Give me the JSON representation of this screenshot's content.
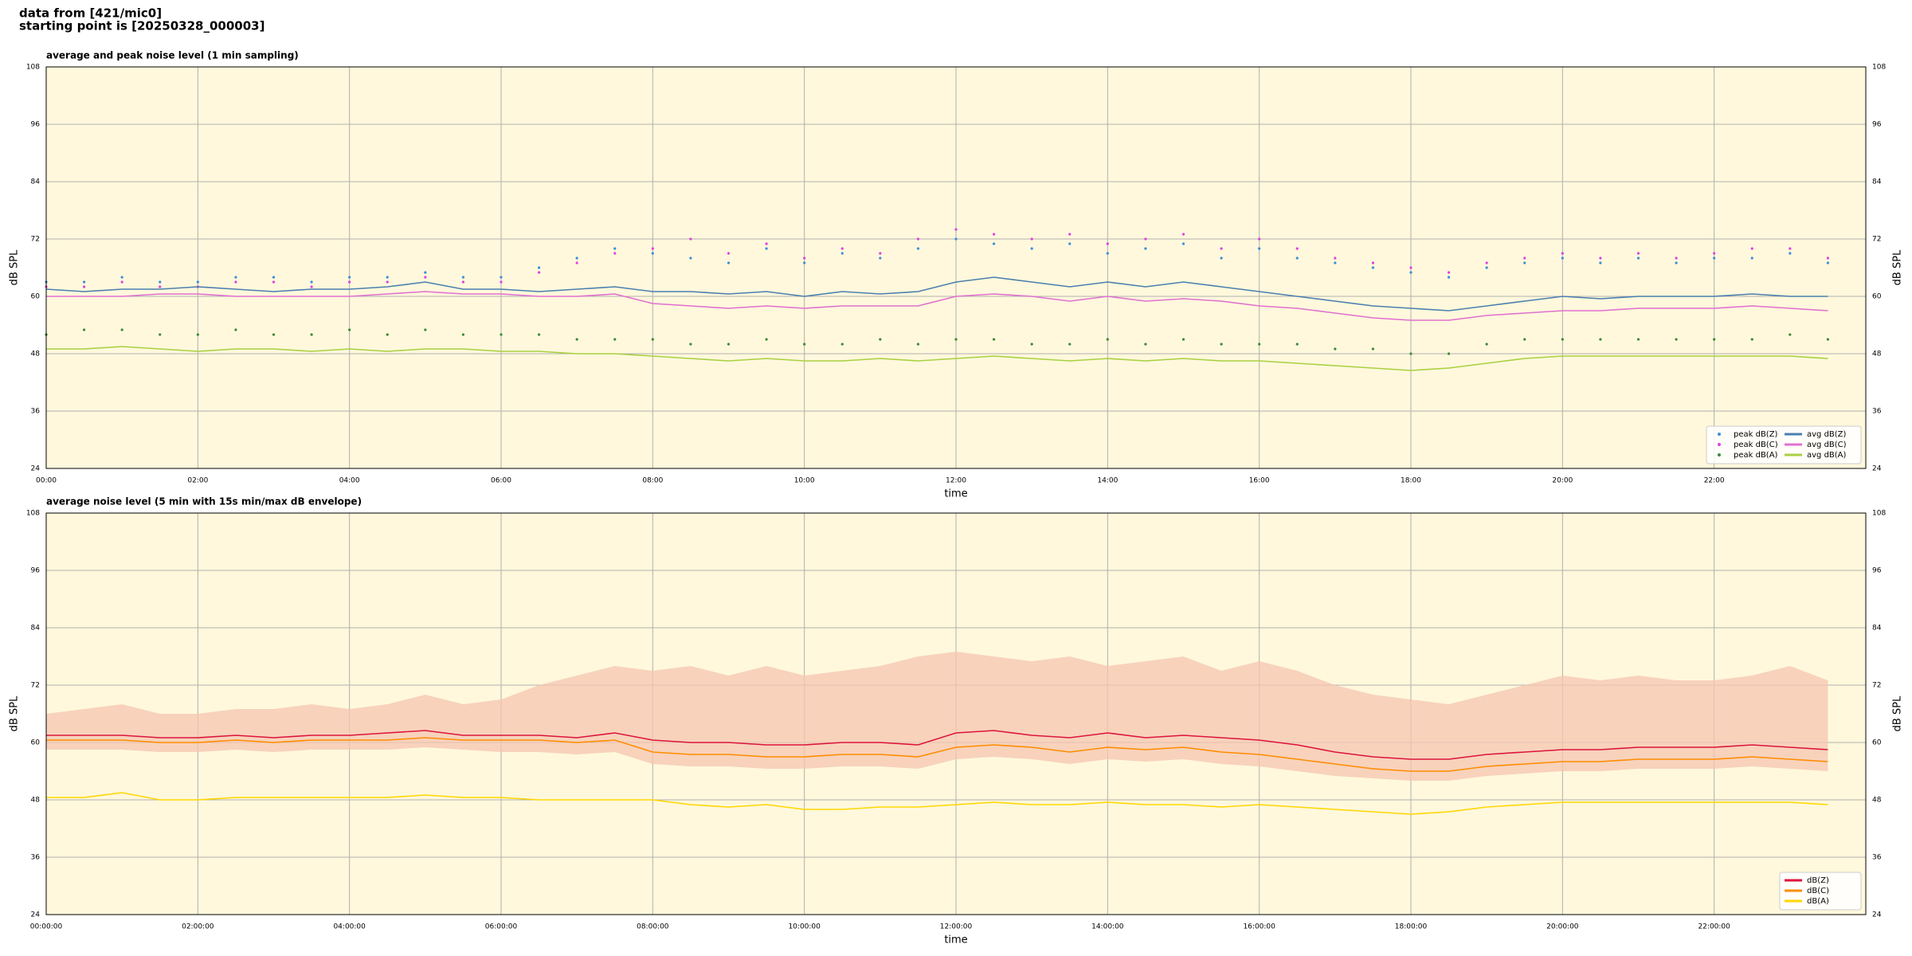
{
  "header": {
    "line1": "data from [421/mic0]",
    "line2": "starting point is [20250328_000003]"
  },
  "chart_data": [
    {
      "type": "line",
      "title": "average and peak noise level (1 min sampling)",
      "xlabel": "time",
      "ylabel": "dB SPL",
      "xlim": [
        0,
        24
      ],
      "ylim": [
        24,
        108
      ],
      "grid": true,
      "legend": "lower right",
      "legend_columns": 2,
      "background": "#fff8dc",
      "xticks": [
        {
          "value": 0,
          "label": "00:00"
        },
        {
          "value": 2,
          "label": "02:00"
        },
        {
          "value": 4,
          "label": "04:00"
        },
        {
          "value": 6,
          "label": "06:00"
        },
        {
          "value": 8,
          "label": "08:00"
        },
        {
          "value": 10,
          "label": "10:00"
        },
        {
          "value": 12,
          "label": "12:00"
        },
        {
          "value": 14,
          "label": "14:00"
        },
        {
          "value": 16,
          "label": "16:00"
        },
        {
          "value": 18,
          "label": "18:00"
        },
        {
          "value": 20,
          "label": "20:00"
        },
        {
          "value": 22,
          "label": "22:00"
        }
      ],
      "yticks": [
        24,
        36,
        48,
        60,
        72,
        84,
        96,
        108
      ],
      "x": [
        0,
        0.5,
        1,
        1.5,
        2,
        2.5,
        3,
        3.5,
        4,
        4.5,
        5,
        5.5,
        6,
        6.5,
        7,
        7.5,
        8,
        8.5,
        9,
        9.5,
        10,
        10.5,
        11,
        11.5,
        12,
        12.5,
        13,
        13.5,
        14,
        14.5,
        15,
        15.5,
        16,
        16.5,
        17,
        17.5,
        18,
        18.5,
        19,
        19.5,
        20,
        20.5,
        21,
        21.5,
        22,
        22.5,
        23,
        23.5
      ],
      "series": [
        {
          "name": "peak dB(Z)",
          "color": "#3a8fd8",
          "style": "dots",
          "values": [
            63,
            63,
            64,
            63,
            63,
            64,
            64,
            63,
            64,
            64,
            65,
            64,
            64,
            66,
            68,
            70,
            69,
            68,
            67,
            70,
            67,
            69,
            68,
            70,
            72,
            71,
            70,
            71,
            69,
            70,
            71,
            68,
            70,
            68,
            67,
            66,
            65,
            64,
            66,
            67,
            68,
            67,
            68,
            67,
            68,
            68,
            69,
            67
          ]
        },
        {
          "name": "peak dB(C)",
          "color": "#e040e0",
          "style": "dots",
          "values": [
            62,
            62,
            63,
            62,
            62,
            63,
            63,
            62,
            63,
            63,
            64,
            63,
            63,
            65,
            67,
            69,
            70,
            72,
            69,
            71,
            68,
            70,
            69,
            72,
            74,
            73,
            72,
            73,
            71,
            72,
            73,
            70,
            72,
            70,
            68,
            67,
            66,
            65,
            67,
            68,
            69,
            68,
            69,
            68,
            69,
            70,
            70,
            68
          ]
        },
        {
          "name": "peak dB(A)",
          "color": "#3a8a3a",
          "style": "dots",
          "values": [
            52,
            53,
            53,
            52,
            52,
            53,
            52,
            52,
            53,
            52,
            53,
            52,
            52,
            52,
            51,
            51,
            51,
            50,
            50,
            51,
            50,
            50,
            51,
            50,
            51,
            51,
            50,
            50,
            51,
            50,
            51,
            50,
            50,
            50,
            49,
            49,
            48,
            48,
            50,
            51,
            51,
            51,
            51,
            51,
            51,
            51,
            52,
            51
          ]
        },
        {
          "name": "avg dB(Z)",
          "color": "#4a7fb0",
          "style": "line",
          "values": [
            61.5,
            61,
            61.5,
            61.5,
            62,
            61.5,
            61,
            61.5,
            61.5,
            62,
            63,
            61.5,
            61.5,
            61,
            61.5,
            62,
            61,
            61,
            60.5,
            61,
            60,
            61,
            60.5,
            61,
            63,
            64,
            63,
            62,
            63,
            62,
            63,
            62,
            61,
            60,
            59,
            58,
            57.5,
            57,
            58,
            59,
            60,
            59.5,
            60,
            60,
            60,
            60.5,
            60,
            60
          ]
        },
        {
          "name": "avg dB(C)",
          "color": "#e070d0",
          "style": "line",
          "values": [
            60,
            60,
            60,
            60.5,
            60.5,
            60,
            60,
            60,
            60,
            60.5,
            61,
            60.5,
            60.5,
            60,
            60,
            60.5,
            58.5,
            58,
            57.5,
            58,
            57.5,
            58,
            58,
            58,
            60,
            60.5,
            60,
            59,
            60,
            59,
            59.5,
            59,
            58,
            57.5,
            56.5,
            55.5,
            55,
            55,
            56,
            56.5,
            57,
            57,
            57.5,
            57.5,
            57.5,
            58,
            57.5,
            57
          ]
        },
        {
          "name": "avg dB(A)",
          "color": "#a8d040",
          "style": "line",
          "values": [
            49,
            49,
            49.5,
            49,
            48.5,
            49,
            49,
            48.5,
            49,
            48.5,
            49,
            49,
            48.5,
            48.5,
            48,
            48,
            47.5,
            47,
            46.5,
            47,
            46.5,
            46.5,
            47,
            46.5,
            47,
            47.5,
            47,
            46.5,
            47,
            46.5,
            47,
            46.5,
            46.5,
            46,
            45.5,
            45,
            44.5,
            45,
            46,
            47,
            47.5,
            47.5,
            47.5,
            47.5,
            47.5,
            47.5,
            47.5,
            47
          ]
        }
      ]
    },
    {
      "type": "line",
      "title": "average noise level (5 min with 15s min/max dB envelope)",
      "xlabel": "time",
      "ylabel": "dB SPL",
      "xlim": [
        0,
        24
      ],
      "ylim": [
        24,
        108
      ],
      "grid": true,
      "legend": "lower right",
      "legend_columns": 1,
      "background": "#fff8dc",
      "xticks": [
        {
          "value": 0,
          "label": "00:00:00"
        },
        {
          "value": 2,
          "label": "02:00:00"
        },
        {
          "value": 4,
          "label": "04:00:00"
        },
        {
          "value": 6,
          "label": "06:00:00"
        },
        {
          "value": 8,
          "label": "08:00:00"
        },
        {
          "value": 10,
          "label": "10:00:00"
        },
        {
          "value": 12,
          "label": "12:00:00"
        },
        {
          "value": 14,
          "label": "14:00:00"
        },
        {
          "value": 16,
          "label": "16:00:00"
        },
        {
          "value": 18,
          "label": "18:00:00"
        },
        {
          "value": 20,
          "label": "20:00:00"
        },
        {
          "value": 22,
          "label": "22:00:00"
        }
      ],
      "yticks": [
        24,
        36,
        48,
        60,
        72,
        84,
        96,
        108
      ],
      "x": [
        0,
        0.5,
        1,
        1.5,
        2,
        2.5,
        3,
        3.5,
        4,
        4.5,
        5,
        5.5,
        6,
        6.5,
        7,
        7.5,
        8,
        8.5,
        9,
        9.5,
        10,
        10.5,
        11,
        11.5,
        12,
        12.5,
        13,
        13.5,
        14,
        14.5,
        15,
        15.5,
        16,
        16.5,
        17,
        17.5,
        18,
        18.5,
        19,
        19.5,
        20,
        20.5,
        21,
        21.5,
        22,
        22.5,
        23,
        23.5
      ],
      "envelope": {
        "color": "#f5c6b0",
        "upper": [
          66,
          67,
          68,
          66,
          66,
          67,
          67,
          68,
          67,
          68,
          70,
          68,
          69,
          72,
          74,
          76,
          75,
          76,
          74,
          76,
          74,
          75,
          76,
          78,
          79,
          78,
          77,
          78,
          76,
          77,
          78,
          75,
          77,
          75,
          72,
          70,
          69,
          68,
          70,
          72,
          74,
          73,
          74,
          73,
          73,
          74,
          76,
          73
        ],
        "lower": [
          58.5,
          58.5,
          58.5,
          58,
          58,
          58.5,
          58,
          58.5,
          58.5,
          58.5,
          59,
          58.5,
          58,
          58,
          57.5,
          58,
          55.5,
          55,
          55,
          54.5,
          54.5,
          55,
          55,
          54.5,
          56.5,
          57,
          56.5,
          55.5,
          56.5,
          56,
          56.5,
          55.5,
          55,
          54,
          53,
          52.5,
          52,
          52,
          53,
          53.5,
          54,
          54,
          54.5,
          54.5,
          54.5,
          55,
          54.5,
          54
        ]
      },
      "series": [
        {
          "name": "dB(Z)",
          "color": "#dc143c",
          "style": "line",
          "values": [
            61.5,
            61.5,
            61.5,
            61,
            61,
            61.5,
            61,
            61.5,
            61.5,
            62,
            62.5,
            61.5,
            61.5,
            61.5,
            61,
            62,
            60.5,
            60,
            60,
            59.5,
            59.5,
            60,
            60,
            59.5,
            62,
            62.5,
            61.5,
            61,
            62,
            61,
            61.5,
            61,
            60.5,
            59.5,
            58,
            57,
            56.5,
            56.5,
            57.5,
            58,
            58.5,
            58.5,
            59,
            59,
            59,
            59.5,
            59,
            58.5
          ]
        },
        {
          "name": "dB(C)",
          "color": "#ff8c00",
          "style": "line",
          "values": [
            60.5,
            60.5,
            60.5,
            60,
            60,
            60.5,
            60,
            60.5,
            60.5,
            60.5,
            61,
            60.5,
            60.5,
            60.5,
            60,
            60.5,
            58,
            57.5,
            57.5,
            57,
            57,
            57.5,
            57.5,
            57,
            59,
            59.5,
            59,
            58,
            59,
            58.5,
            59,
            58,
            57.5,
            56.5,
            55.5,
            54.5,
            54,
            54,
            55,
            55.5,
            56,
            56,
            56.5,
            56.5,
            56.5,
            57,
            56.5,
            56
          ]
        },
        {
          "name": "dB(A)",
          "color": "#ffd700",
          "style": "line",
          "values": [
            48.5,
            48.5,
            49.5,
            48,
            48,
            48.5,
            48.5,
            48.5,
            48.5,
            48.5,
            49,
            48.5,
            48.5,
            48,
            48,
            48,
            48,
            47,
            46.5,
            47,
            46,
            46,
            46.5,
            46.5,
            47,
            47.5,
            47,
            47,
            47.5,
            47,
            47,
            46.5,
            47,
            46.5,
            46,
            45.5,
            45,
            45.5,
            46.5,
            47,
            47.5,
            47.5,
            47.5,
            47.5,
            47.5,
            47.5,
            47.5,
            47
          ]
        }
      ]
    }
  ]
}
